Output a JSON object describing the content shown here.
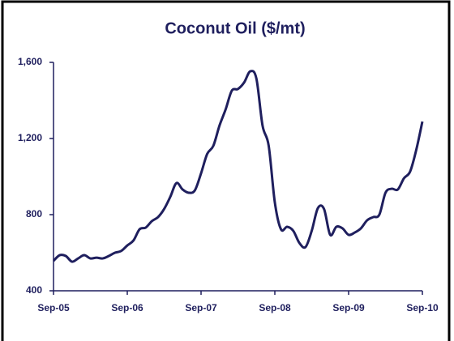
{
  "chart_data": {
    "type": "line",
    "title": "Coconut Oil ($/mt)",
    "categories": [
      "Sep-05",
      null,
      null,
      null,
      null,
      null,
      null,
      null,
      null,
      null,
      null,
      null,
      "Sep-06",
      null,
      null,
      null,
      null,
      null,
      null,
      null,
      null,
      null,
      null,
      null,
      "Sep-07",
      null,
      null,
      null,
      null,
      null,
      null,
      null,
      null,
      null,
      null,
      null,
      "Sep-08",
      null,
      null,
      null,
      null,
      null,
      null,
      null,
      null,
      null,
      null,
      null,
      "Sep-09",
      null,
      null,
      null,
      null,
      null,
      null,
      null,
      null,
      null,
      null,
      null,
      "Sep-10"
    ],
    "series": [
      {
        "name": "Coconut Oil",
        "color": "#1f1f5e",
        "values": [
          557,
          587,
          583,
          553,
          570,
          587,
          570,
          574,
          570,
          583,
          600,
          609,
          638,
          664,
          723,
          732,
          766,
          787,
          830,
          894,
          966,
          932,
          915,
          928,
          1017,
          1119,
          1162,
          1268,
          1353,
          1451,
          1460,
          1494,
          1553,
          1515,
          1268,
          1162,
          864,
          723,
          736,
          715,
          651,
          630,
          715,
          834,
          830,
          694,
          736,
          728,
          694,
          706,
          728,
          770,
          787,
          800,
          915,
          936,
          932,
          991,
          1026,
          1140,
          1289
        ]
      }
    ],
    "ylim": [
      400,
      1600
    ],
    "yticks": [
      400,
      800,
      {
        "value": 1200,
        "label": "1,200"
      },
      {
        "value": 1600,
        "label": "1,600"
      }
    ]
  }
}
